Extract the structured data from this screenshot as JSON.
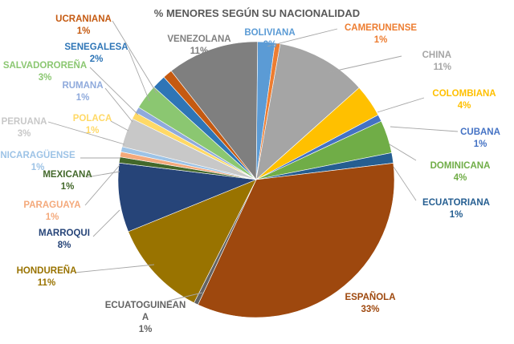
{
  "chart_data": {
    "type": "pie",
    "title": "% MENORES SEGÚN SU NACIONALIDAD",
    "slices": [
      {
        "name": "BOLIVIANA",
        "label": "2%",
        "value": 2,
        "color": "#5b9bd5"
      },
      {
        "name": "CAMERUNENSE",
        "label": "1%",
        "value": 0.6,
        "color": "#ed7d31"
      },
      {
        "name": "CHINA",
        "label": "11%",
        "value": 10.5,
        "color": "#a5a5a5"
      },
      {
        "name": "COLOMBIANA",
        "label": "4%",
        "value": 3.8,
        "color": "#ffc000"
      },
      {
        "name": "CUBANA",
        "label": "1%",
        "value": 0.8,
        "color": "#4472c4"
      },
      {
        "name": "DOMINICANA",
        "label": "4%",
        "value": 3.8,
        "color": "#70ad47"
      },
      {
        "name": "ECUATORIANA",
        "label": "1%",
        "value": 1.2,
        "color": "#255e91"
      },
      {
        "name": "ESPAÑOLA",
        "label": "33%",
        "value": 33.5,
        "color": "#9e480e"
      },
      {
        "name": "ECUATOGUINEANA",
        "label": "1%",
        "value": 0.5,
        "color": "#636363"
      },
      {
        "name": "HONDUREÑA",
        "label": "11%",
        "value": 11.3,
        "color": "#997300"
      },
      {
        "name": "MARROQUI",
        "label": "8%",
        "value": 8,
        "color": "#264478"
      },
      {
        "name": "MEXICANA",
        "label": "1%",
        "value": 0.7,
        "color": "#43682b"
      },
      {
        "name": "PARAGUAYA",
        "label": "1%",
        "value": 0.6,
        "color": "#f4a97b"
      },
      {
        "name": "NICARAGÜENSE",
        "label": "1%",
        "value": 0.6,
        "color": "#9dc3e6"
      },
      {
        "name": "PERUANA",
        "label": "3%",
        "value": 3.4,
        "color": "#c8c8c8"
      },
      {
        "name": "POLACA",
        "label": "1%",
        "value": 0.8,
        "color": "#ffd966"
      },
      {
        "name": "RUMANA",
        "label": "1%",
        "value": 0.7,
        "color": "#8faadc"
      },
      {
        "name": "SALVADOROREÑA",
        "label": "3%",
        "value": 2.9,
        "color": "#8bc771"
      },
      {
        "name": "SENEGALESA",
        "label": "2%",
        "value": 1.6,
        "color": "#2e75b6"
      },
      {
        "name": "UCRANIANA",
        "label": "1%",
        "value": 1.1,
        "color": "#c55a11"
      },
      {
        "name": "VENEZOLANA",
        "label": "11%",
        "value": 10.6,
        "color": "#7f7f7f"
      }
    ],
    "legend": "none",
    "data_labels": "outside-with-leader-lines"
  }
}
